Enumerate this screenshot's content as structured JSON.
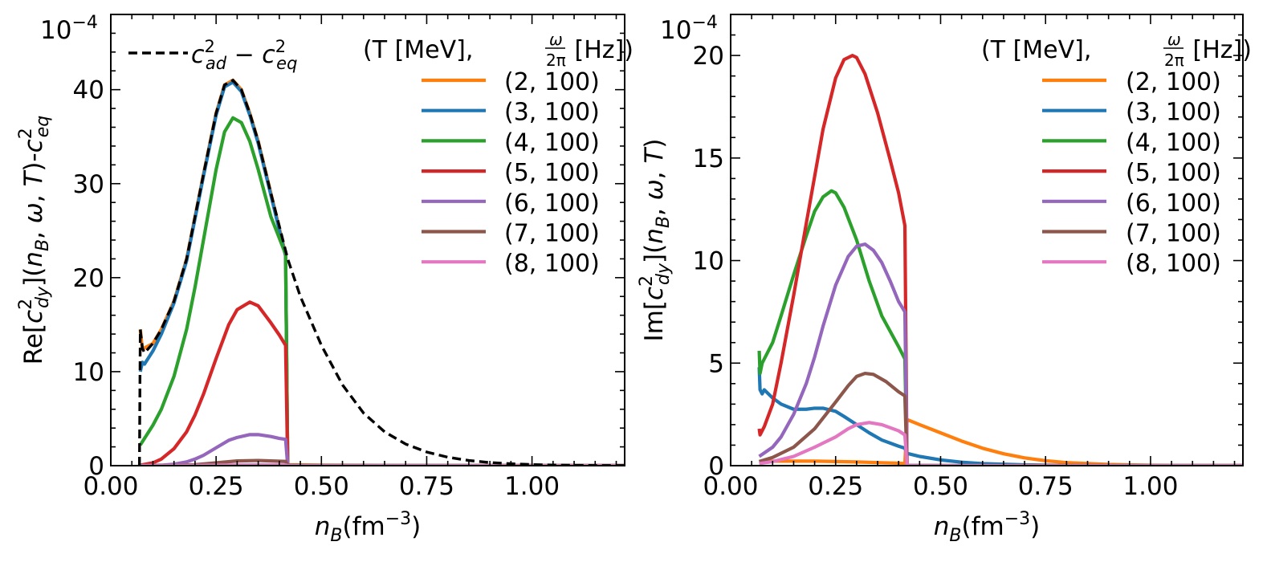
{
  "chart_data": [
    {
      "type": "line",
      "panel": "left",
      "ylabel": "Re[c²dy](nB, ω, T)-c²eq",
      "ylabel_parts": {
        "pre": "Re[",
        "c": "c",
        "sup": "2",
        "sub": "dy",
        "mid": "](",
        "nb": "n",
        "nbsub": "B",
        "rest": ", ω, T)-",
        "c2": "c",
        "c2sup": "2",
        "c2sub": "eq"
      },
      "xlabel_parts": {
        "n": "n",
        "sub": "B",
        "unit": "(fm",
        "exp": "−3",
        "close": ")"
      },
      "exponent_label": {
        "base": "10",
        "exp": "−4"
      },
      "xlim": [
        0.0,
        1.22
      ],
      "ylim": [
        0,
        48
      ],
      "xticks": [
        0.0,
        0.25,
        0.5,
        0.75,
        1.0
      ],
      "xtick_labels": [
        "0.00",
        "0.25",
        "0.50",
        "0.75",
        "1.00"
      ],
      "yticks": [
        0,
        10,
        20,
        30,
        40
      ],
      "ytick_labels": [
        "0",
        "10",
        "20",
        "30",
        "40"
      ],
      "reference_legend": {
        "label": "c²ad − c²eq",
        "c": "c",
        "sup": "2",
        "sub1": "ad",
        "minus": " − ",
        "sub2": "eq"
      },
      "legend_title": "(T [MeV], ω/2π [Hz])",
      "legend_title_parts": {
        "pre": "(T [MeV], ",
        "num": "ω",
        "den": "2π",
        "post": " [Hz])"
      },
      "reference": {
        "name": "c2_ad - c2_eq",
        "color": "#000000",
        "style": "dashed",
        "x": [
          0.068,
          0.07,
          0.075,
          0.08,
          0.1,
          0.12,
          0.15,
          0.18,
          0.2,
          0.22,
          0.25,
          0.27,
          0.29,
          0.31,
          0.33,
          0.35,
          0.38,
          0.42,
          0.45,
          0.5,
          0.55,
          0.6,
          0.65,
          0.7,
          0.75,
          0.8,
          0.85,
          0.9,
          0.95,
          1.0,
          1.05,
          1.1,
          1.15,
          1.22
        ],
        "y": [
          0,
          14.5,
          12.5,
          12.0,
          13.0,
          14.5,
          17.5,
          22.0,
          26.5,
          31.0,
          37.5,
          40.5,
          41.0,
          40.0,
          37.5,
          34.5,
          29.0,
          22.0,
          18.0,
          12.8,
          8.6,
          5.6,
          3.6,
          2.3,
          1.45,
          0.9,
          0.55,
          0.33,
          0.2,
          0.12,
          0.07,
          0.04,
          0.02,
          0.01
        ]
      },
      "series": [
        {
          "name": "(2, 100)",
          "color": "#ff7f0e",
          "x": [
            0.07,
            0.075,
            0.1,
            0.12,
            0.15,
            0.18,
            0.2,
            0.22,
            0.25,
            0.27,
            0.29,
            0.31,
            0.33,
            0.35,
            0.38,
            0.415,
            0.42,
            0.5,
            0.75,
            1.0,
            1.22
          ],
          "y": [
            14.5,
            12.4,
            13.0,
            14.5,
            17.5,
            22.0,
            26.5,
            31.0,
            37.5,
            40.5,
            41.0,
            40.0,
            37.5,
            34.5,
            29.0,
            22.5,
            0.1,
            0.05,
            0.02,
            0.01,
            0.0
          ]
        },
        {
          "name": "(3, 100)",
          "color": "#1f77b4",
          "x": [
            0.07,
            0.075,
            0.08,
            0.1,
            0.12,
            0.15,
            0.18,
            0.2,
            0.22,
            0.25,
            0.27,
            0.29,
            0.31,
            0.33,
            0.35,
            0.38,
            0.415,
            0.42,
            0.5,
            0.75,
            1.0,
            1.22
          ],
          "y": [
            10.0,
            11.0,
            10.8,
            12.2,
            14.0,
            17.3,
            21.8,
            26.3,
            30.8,
            37.3,
            40.3,
            40.8,
            39.8,
            37.3,
            34.3,
            28.8,
            22.3,
            0.05,
            0.03,
            0.01,
            0.0,
            0.0
          ]
        },
        {
          "name": "(4, 100)",
          "color": "#2ca02c",
          "x": [
            0.07,
            0.1,
            0.12,
            0.15,
            0.18,
            0.2,
            0.22,
            0.25,
            0.27,
            0.29,
            0.31,
            0.33,
            0.35,
            0.38,
            0.415,
            0.42,
            0.5,
            0.75,
            1.0,
            1.22
          ],
          "y": [
            2.2,
            4.3,
            6.0,
            9.5,
            14.5,
            19.0,
            24.0,
            31.5,
            35.5,
            37.0,
            36.5,
            34.5,
            31.5,
            26.5,
            22.5,
            0.03,
            0.02,
            0.01,
            0.0,
            0.0
          ]
        },
        {
          "name": "(5, 100)",
          "color": "#d62728",
          "x": [
            0.07,
            0.1,
            0.12,
            0.15,
            0.18,
            0.2,
            0.22,
            0.25,
            0.28,
            0.3,
            0.33,
            0.35,
            0.38,
            0.4,
            0.415,
            0.42,
            0.5,
            0.75,
            1.0,
            1.22
          ],
          "y": [
            0.05,
            0.3,
            0.7,
            1.8,
            3.6,
            5.4,
            7.6,
            11.4,
            15.0,
            16.6,
            17.4,
            17.0,
            15.2,
            13.9,
            12.8,
            0.02,
            0.01,
            0.0,
            0.0,
            0.0
          ]
        },
        {
          "name": "(6, 100)",
          "color": "#9467bd",
          "x": [
            0.07,
            0.12,
            0.15,
            0.18,
            0.2,
            0.22,
            0.25,
            0.28,
            0.3,
            0.33,
            0.35,
            0.38,
            0.4,
            0.415,
            0.42,
            0.5,
            0.75,
            1.0,
            1.22
          ],
          "y": [
            0.0,
            0.05,
            0.15,
            0.4,
            0.7,
            1.1,
            1.9,
            2.7,
            3.0,
            3.3,
            3.3,
            3.1,
            2.9,
            2.8,
            0.01,
            0.0,
            0.0,
            0.0,
            0.0
          ]
        },
        {
          "name": "(7, 100)",
          "color": "#8c564b",
          "x": [
            0.07,
            0.15,
            0.2,
            0.25,
            0.3,
            0.35,
            0.38,
            0.415,
            0.42,
            0.5,
            0.75,
            1.0,
            1.22
          ],
          "y": [
            0.0,
            0.03,
            0.1,
            0.3,
            0.5,
            0.55,
            0.5,
            0.45,
            0.0,
            0.0,
            0.0,
            0.0,
            0.0
          ]
        },
        {
          "name": "(8, 100)",
          "color": "#e377c2",
          "x": [
            0.07,
            0.2,
            0.3,
            0.35,
            0.415,
            0.42,
            0.75,
            1.22
          ],
          "y": [
            0.0,
            0.02,
            0.07,
            0.08,
            0.07,
            0.0,
            0.0,
            0.0
          ]
        }
      ]
    },
    {
      "type": "line",
      "panel": "right",
      "ylabel": "Im[c²dy](nB, ω, T)",
      "ylabel_parts": {
        "pre": "Im[",
        "c": "c",
        "sup": "2",
        "sub": "dy",
        "mid": "](",
        "nb": "n",
        "nbsub": "B",
        "rest": ", ω, T)"
      },
      "xlabel_parts": {
        "n": "n",
        "sub": "B",
        "unit": "(fm",
        "exp": "−3",
        "close": ")"
      },
      "exponent_label": {
        "base": "10",
        "exp": "−4"
      },
      "xlim": [
        0.0,
        1.22
      ],
      "ylim": [
        0,
        22
      ],
      "xticks": [
        0.0,
        0.25,
        0.5,
        0.75,
        1.0
      ],
      "xtick_labels": [
        "0.00",
        "0.25",
        "0.50",
        "0.75",
        "1.00"
      ],
      "yticks": [
        0,
        5,
        10,
        15,
        20
      ],
      "ytick_labels": [
        "0",
        "5",
        "10",
        "15",
        "20"
      ],
      "legend_title": "(T [MeV], ω/2π [Hz])",
      "legend_title_parts": {
        "pre": "(T [MeV], ",
        "num": "ω",
        "den": "2π",
        "post": " [Hz])"
      },
      "series": [
        {
          "name": "(2, 100)",
          "color": "#ff7f0e",
          "x": [
            0.068,
            0.1,
            0.15,
            0.2,
            0.25,
            0.3,
            0.35,
            0.4,
            0.415,
            0.42,
            0.45,
            0.5,
            0.55,
            0.6,
            0.65,
            0.7,
            0.75,
            0.8,
            0.9,
            1.0,
            1.1,
            1.22
          ],
          "y": [
            0.2,
            0.22,
            0.22,
            0.22,
            0.2,
            0.18,
            0.15,
            0.12,
            0.1,
            2.25,
            2.0,
            1.6,
            1.2,
            0.85,
            0.58,
            0.38,
            0.24,
            0.15,
            0.06,
            0.02,
            0.01,
            0.0
          ]
        },
        {
          "name": "(3, 100)",
          "color": "#1f77b4",
          "x": [
            0.068,
            0.07,
            0.075,
            0.08,
            0.1,
            0.12,
            0.15,
            0.18,
            0.2,
            0.22,
            0.25,
            0.27,
            0.3,
            0.33,
            0.36,
            0.4,
            0.415,
            0.42,
            0.45,
            0.5,
            0.55,
            0.6,
            0.7,
            0.8,
            1.0,
            1.22
          ],
          "y": [
            4.8,
            3.7,
            3.5,
            3.7,
            3.3,
            3.0,
            2.75,
            2.75,
            2.8,
            2.8,
            2.65,
            2.4,
            2.0,
            1.6,
            1.25,
            0.95,
            0.85,
            0.6,
            0.45,
            0.28,
            0.17,
            0.1,
            0.04,
            0.01,
            0.0,
            0.0
          ]
        },
        {
          "name": "(4, 100)",
          "color": "#2ca02c",
          "x": [
            0.068,
            0.07,
            0.075,
            0.1,
            0.12,
            0.15,
            0.18,
            0.2,
            0.22,
            0.24,
            0.25,
            0.27,
            0.3,
            0.33,
            0.36,
            0.4,
            0.415,
            0.42,
            0.5,
            0.75,
            1.0,
            1.22
          ],
          "y": [
            5.6,
            4.5,
            5.0,
            6.0,
            7.3,
            9.3,
            11.2,
            12.4,
            13.1,
            13.4,
            13.3,
            12.6,
            11.0,
            9.0,
            7.3,
            5.8,
            5.2,
            0.01,
            0.0,
            0.0,
            0.0,
            0.0
          ]
        },
        {
          "name": "(5, 100)",
          "color": "#d62728",
          "x": [
            0.068,
            0.07,
            0.075,
            0.08,
            0.1,
            0.12,
            0.15,
            0.18,
            0.2,
            0.22,
            0.25,
            0.27,
            0.29,
            0.3,
            0.32,
            0.35,
            0.38,
            0.4,
            0.415,
            0.42,
            0.5,
            0.75,
            1.0,
            1.22
          ],
          "y": [
            1.8,
            1.5,
            1.7,
            1.9,
            3.0,
            5.0,
            8.3,
            11.8,
            14.1,
            16.4,
            18.9,
            19.8,
            20.0,
            19.9,
            19.1,
            17.2,
            14.9,
            13.3,
            11.7,
            0.01,
            0.0,
            0.0,
            0.0,
            0.0
          ]
        },
        {
          "name": "(6, 100)",
          "color": "#9467bd",
          "x": [
            0.068,
            0.1,
            0.12,
            0.15,
            0.18,
            0.2,
            0.22,
            0.25,
            0.28,
            0.3,
            0.32,
            0.34,
            0.36,
            0.38,
            0.4,
            0.415,
            0.42,
            0.5,
            0.75,
            1.0,
            1.22
          ],
          "y": [
            0.45,
            0.9,
            1.4,
            2.5,
            4.0,
            5.3,
            6.8,
            8.8,
            10.2,
            10.7,
            10.8,
            10.5,
            9.9,
            9.0,
            8.0,
            7.5,
            0.01,
            0.0,
            0.0,
            0.0,
            0.0
          ]
        },
        {
          "name": "(7, 100)",
          "color": "#8c564b",
          "x": [
            0.068,
            0.1,
            0.15,
            0.2,
            0.25,
            0.28,
            0.3,
            0.32,
            0.34,
            0.37,
            0.4,
            0.415,
            0.42,
            0.5,
            0.75,
            1.0,
            1.22
          ],
          "y": [
            0.2,
            0.4,
            0.9,
            1.8,
            3.1,
            3.9,
            4.35,
            4.5,
            4.45,
            4.1,
            3.6,
            3.4,
            0.01,
            0.0,
            0.0,
            0.0,
            0.0
          ]
        },
        {
          "name": "(8, 100)",
          "color": "#e377c2",
          "x": [
            0.068,
            0.1,
            0.15,
            0.2,
            0.25,
            0.28,
            0.3,
            0.33,
            0.36,
            0.4,
            0.415,
            0.42,
            0.5,
            0.75,
            1.0,
            1.22
          ],
          "y": [
            0.1,
            0.2,
            0.45,
            0.9,
            1.4,
            1.8,
            2.0,
            2.1,
            2.0,
            1.7,
            1.5,
            0.01,
            0.0,
            0.0,
            0.0,
            0.0
          ]
        }
      ]
    }
  ]
}
